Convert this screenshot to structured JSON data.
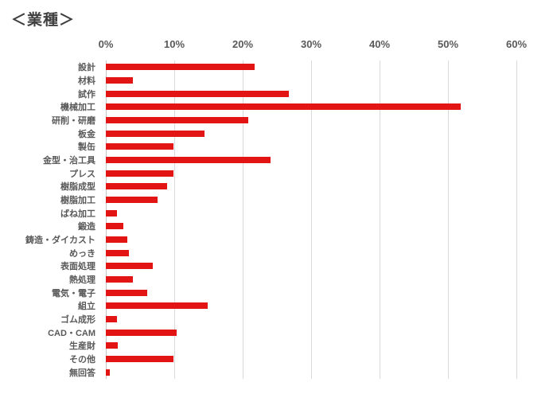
{
  "title": "＜業種＞",
  "colors": {
    "bar": "#e21414",
    "gridline": "#d9d9d9",
    "axis_line": "#c6c6c6",
    "title_text": "#3f3f3f",
    "label_text": "#595959",
    "background": "#ffffff"
  },
  "chart_data": {
    "type": "bar",
    "orientation": "horizontal",
    "title": "＜業種＞",
    "xlabel": "",
    "ylabel": "",
    "xlim": [
      0,
      60
    ],
    "grid": true,
    "x_tick_labels": [
      "0%",
      "10%",
      "20%",
      "30%",
      "40%",
      "50%",
      "60%"
    ],
    "x_tick_values": [
      0,
      10,
      20,
      30,
      40,
      50,
      60
    ],
    "categories": [
      "設計",
      "材料",
      "試作",
      "機械加工",
      "研削・研磨",
      "板金",
      "製缶",
      "金型・治工具",
      "プレス",
      "樹脂成型",
      "樹脂加工",
      "ばね加工",
      "鍛造",
      "鋳造・ダイカスト",
      "めっき",
      "表面処理",
      "熱処理",
      "電気・電子",
      "組立",
      "ゴム成形",
      "CAD・CAM",
      "生産財",
      "その他",
      "無回答"
    ],
    "values": [
      21.7,
      4.0,
      26.7,
      51.9,
      20.8,
      14.4,
      9.9,
      24.1,
      9.9,
      9.0,
      7.5,
      1.6,
      2.6,
      3.1,
      3.4,
      6.9,
      4.0,
      6.0,
      14.9,
      1.6,
      10.3,
      1.7,
      9.9,
      0.6
    ],
    "unit": "%"
  }
}
